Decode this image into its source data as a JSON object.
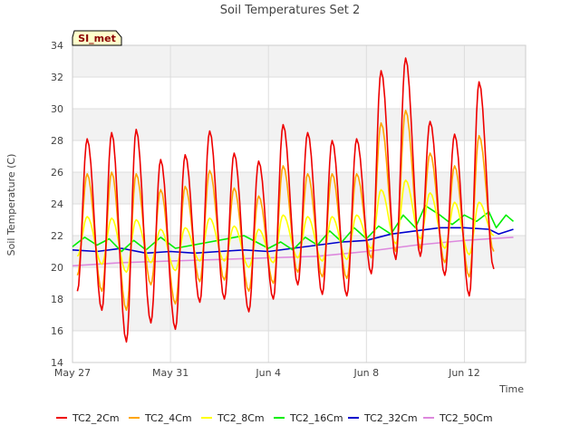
{
  "chart_data": {
    "type": "line",
    "title": "Soil Temperatures Set 2",
    "xlabel": "Time",
    "ylabel": "Soil Temperature (C)",
    "badge": "SI_met",
    "ylim": [
      14,
      34
    ],
    "yticks": [
      14,
      16,
      18,
      20,
      22,
      24,
      26,
      28,
      30,
      32,
      34
    ],
    "xlim_days": [
      0,
      18.5
    ],
    "xticks": [
      {
        "day": 0,
        "label": "May 27"
      },
      {
        "day": 4,
        "label": "May 31"
      },
      {
        "day": 8,
        "label": "Jun 4"
      },
      {
        "day": 12,
        "label": "Jun 8"
      },
      {
        "day": 16,
        "label": "Jun 12"
      }
    ],
    "grid": true,
    "legend_position": "bottom",
    "x_unit": "days since May 27",
    "series": [
      {
        "name": "TC2_2Cm",
        "color": "#ee0000",
        "daily_max": [
          28.1,
          28.5,
          28.7,
          26.8,
          27.1,
          28.6,
          27.2,
          26.7,
          29.0,
          28.5,
          28.0,
          28.1,
          32.4,
          33.2,
          29.2,
          28.4,
          31.7
        ],
        "daily_min": [
          18.5,
          17.3,
          15.3,
          16.5,
          16.1,
          17.8,
          18.0,
          17.2,
          18.0,
          18.9,
          18.3,
          18.2,
          19.6,
          20.5,
          20.7,
          19.5,
          18.2,
          19.9
        ]
      },
      {
        "name": "TC2_4Cm",
        "color": "#ffa500",
        "daily_max": [
          25.9,
          26.0,
          25.9,
          24.9,
          25.1,
          26.1,
          25.0,
          24.5,
          26.4,
          25.9,
          25.9,
          25.9,
          29.1,
          29.9,
          27.2,
          26.4,
          28.3
        ],
        "daily_min": [
          19.5,
          18.5,
          17.3,
          18.9,
          17.7,
          19.1,
          19.2,
          18.5,
          19.0,
          19.7,
          19.4,
          19.3,
          20.6,
          21.0,
          21.2,
          20.3,
          19.4,
          21.0
        ]
      },
      {
        "name": "TC2_8Cm",
        "color": "#ffff00",
        "daily_max": [
          23.2,
          23.1,
          23.0,
          22.4,
          22.5,
          23.1,
          22.6,
          22.4,
          23.3,
          23.2,
          23.2,
          23.3,
          24.9,
          25.5,
          24.7,
          24.1,
          24.1
        ],
        "daily_min": [
          20.7,
          20.2,
          19.7,
          20.3,
          19.8,
          20.4,
          20.4,
          20.0,
          20.3,
          20.6,
          20.4,
          20.5,
          21.2,
          21.5,
          21.8,
          21.2,
          20.8,
          22.0
        ]
      },
      {
        "name": "TC2_16Cm",
        "color": "#00ee00",
        "points": [
          [
            0.0,
            21.3
          ],
          [
            0.5,
            21.9
          ],
          [
            1.0,
            21.4
          ],
          [
            1.5,
            21.8
          ],
          [
            2.0,
            21.0
          ],
          [
            2.5,
            21.7
          ],
          [
            3.0,
            21.1
          ],
          [
            3.6,
            21.9
          ],
          [
            4.2,
            21.2
          ],
          [
            7.0,
            22.0
          ],
          [
            7.5,
            21.6
          ],
          [
            8.0,
            21.2
          ],
          [
            8.5,
            21.6
          ],
          [
            9.0,
            21.1
          ],
          [
            9.5,
            21.9
          ],
          [
            10.0,
            21.4
          ],
          [
            10.5,
            22.3
          ],
          [
            11.0,
            21.6
          ],
          [
            11.5,
            22.5
          ],
          [
            12.0,
            21.8
          ],
          [
            12.5,
            22.6
          ],
          [
            13.0,
            22.1
          ],
          [
            13.5,
            23.3
          ],
          [
            14.0,
            22.5
          ],
          [
            14.4,
            23.9
          ],
          [
            15.0,
            23.3
          ],
          [
            15.5,
            22.7
          ],
          [
            16.0,
            23.3
          ],
          [
            16.5,
            22.9
          ],
          [
            17.0,
            23.5
          ],
          [
            17.3,
            22.5
          ],
          [
            17.7,
            23.3
          ],
          [
            18.0,
            22.9
          ]
        ]
      },
      {
        "name": "TC2_32Cm",
        "color": "#0000cc",
        "points": [
          [
            0.0,
            21.1
          ],
          [
            1.0,
            21.0
          ],
          [
            2.0,
            21.2
          ],
          [
            3.0,
            20.9
          ],
          [
            4.0,
            21.0
          ],
          [
            5.0,
            20.9
          ],
          [
            6.0,
            21.0
          ],
          [
            7.0,
            21.1
          ],
          [
            8.0,
            21.0
          ],
          [
            9.0,
            21.2
          ],
          [
            10.0,
            21.4
          ],
          [
            11.0,
            21.6
          ],
          [
            12.0,
            21.7
          ],
          [
            13.0,
            22.1
          ],
          [
            14.0,
            22.3
          ],
          [
            15.0,
            22.5
          ],
          [
            16.0,
            22.5
          ],
          [
            17.0,
            22.4
          ],
          [
            17.4,
            22.1
          ],
          [
            18.0,
            22.4
          ]
        ]
      },
      {
        "name": "TC2_50Cm",
        "color": "#dd88dd",
        "points": [
          [
            0.0,
            20.1
          ],
          [
            2.0,
            20.3
          ],
          [
            4.0,
            20.4
          ],
          [
            6.0,
            20.5
          ],
          [
            8.0,
            20.6
          ],
          [
            10.0,
            20.7
          ],
          [
            12.0,
            21.0
          ],
          [
            14.0,
            21.4
          ],
          [
            16.0,
            21.7
          ],
          [
            17.0,
            21.8
          ],
          [
            18.0,
            21.9
          ]
        ]
      }
    ]
  }
}
